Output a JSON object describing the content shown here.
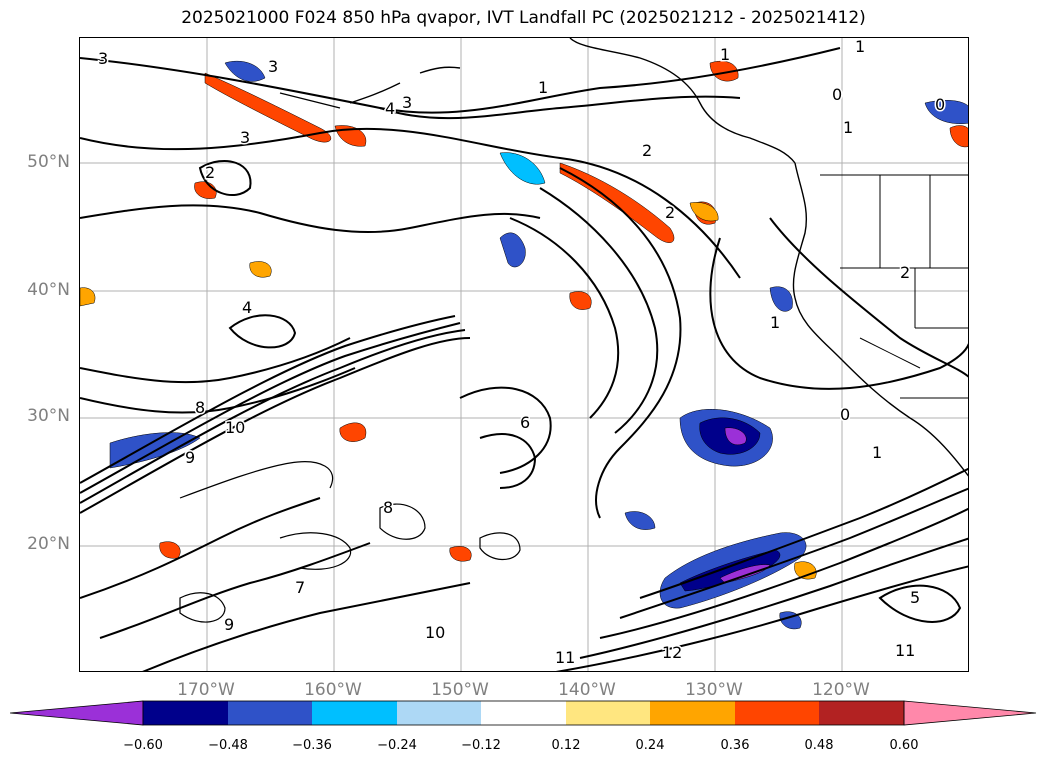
{
  "title": "2025021000 F024 850 hPa qvapor, IVT Landfall PC (2025021212 - 2025021412)",
  "lat_labels": [
    "50°N",
    "40°N",
    "30°N",
    "20°N"
  ],
  "lon_labels": [
    "170°W",
    "160°W",
    "150°W",
    "140°W",
    "130°W",
    "120°W"
  ],
  "colorbar": {
    "tick_labels": [
      "−0.60",
      "−0.48",
      "−0.36",
      "−0.24",
      "−0.12",
      "0.12",
      "0.24",
      "0.36",
      "0.48",
      "0.60"
    ],
    "colors": [
      "#9b30d8",
      "#00008b",
      "#2f52c8",
      "#00bfff",
      "#add8f5",
      "#ffffff",
      "#ffe680",
      "#ffa500",
      "#ff4500",
      "#b22222",
      "#ff88aa"
    ]
  },
  "contour_labels": [
    "3",
    "3",
    "3",
    "3",
    "4",
    "1",
    "1",
    "1",
    "0",
    "0",
    "1",
    "1",
    "2",
    "2",
    "2",
    "2",
    "4",
    "9",
    "10",
    "8",
    "8",
    "6",
    "7",
    "9",
    "11",
    "12",
    "10",
    "11",
    "5",
    "1",
    "0"
  ]
}
